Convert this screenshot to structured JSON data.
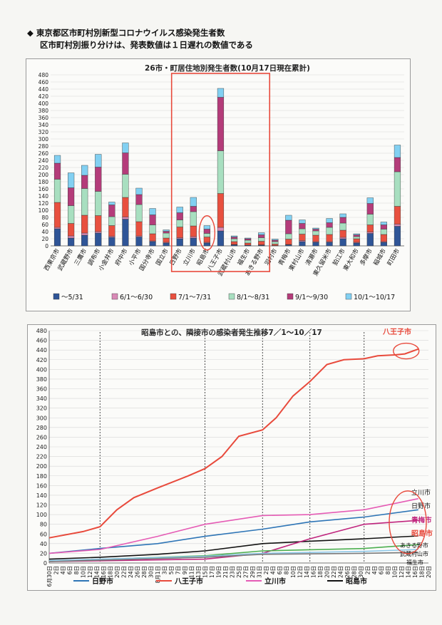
{
  "header": {
    "bullet": "◆",
    "line1": "東京都区市町村別新型コロナウイルス感染発生者数",
    "line2": "区市町村別振り分けは、発表数値は１日遅れの数値である"
  },
  "chart_data": [
    {
      "type": "bar",
      "stacked": true,
      "title": "26市・町居住地別発生者数(10月17日現在累計)",
      "ylim": [
        0,
        480
      ],
      "yticks": [
        0,
        20,
        40,
        60,
        80,
        100,
        120,
        140,
        160,
        180,
        200,
        220,
        240,
        260,
        280,
        300,
        320,
        340,
        360,
        380,
        400,
        420,
        440,
        460,
        480
      ],
      "categories": [
        "西東京市",
        "武蔵野市",
        "三鷹市",
        "調布市",
        "小金井市",
        "府中市",
        "小平市",
        "国分寺市",
        "国立市",
        "日野市",
        "立川市",
        "昭島市",
        "八王子市",
        "武蔵村山市",
        "福生市",
        "あきる野市",
        "羽村市",
        "青梅市",
        "東村山市",
        "清瀬市",
        "東久留米市",
        "狛江市",
        "東大和市",
        "多摩市",
        "稲城市",
        "町田市"
      ],
      "series": [
        {
          "name": "～5/31",
          "color": "#2f5597",
          "values": [
            48,
            22,
            30,
            36,
            24,
            75,
            25,
            12,
            8,
            20,
            22,
            8,
            42,
            3,
            2,
            2,
            1,
            3,
            12,
            10,
            10,
            20,
            8,
            35,
            10,
            55
          ]
        },
        {
          "name": "6/1～6/30",
          "color": "#d98ab7",
          "values": [
            4,
            6,
            6,
            4,
            3,
            6,
            3,
            2,
            2,
            3,
            4,
            2,
            10,
            1,
            0,
            1,
            0,
            1,
            3,
            2,
            2,
            4,
            2,
            4,
            2,
            6
          ]
        },
        {
          "name": "7/1～7/31",
          "color": "#e8503f",
          "values": [
            70,
            35,
            50,
            45,
            30,
            55,
            40,
            20,
            12,
            30,
            30,
            15,
            95,
            8,
            6,
            10,
            4,
            15,
            18,
            18,
            20,
            20,
            10,
            20,
            20,
            50
          ]
        },
        {
          "name": "8/1～8/31",
          "color": "#a8dfc0",
          "values": [
            65,
            50,
            75,
            68,
            25,
            65,
            48,
            25,
            14,
            20,
            40,
            10,
            120,
            8,
            8,
            10,
            7,
            15,
            15,
            12,
            20,
            20,
            6,
            30,
            15,
            97
          ]
        },
        {
          "name": "9/1～9/30",
          "color": "#b43c7a",
          "values": [
            45,
            50,
            37,
            68,
            33,
            60,
            28,
            28,
            5,
            20,
            15,
            12,
            150,
            5,
            4,
            8,
            4,
            38,
            15,
            5,
            13,
            16,
            5,
            30,
            12,
            40
          ]
        },
        {
          "name": "10/1～10/17",
          "color": "#82d0f2",
          "values": [
            22,
            42,
            28,
            36,
            8,
            28,
            18,
            18,
            4,
            16,
            25,
            10,
            25,
            3,
            2,
            6,
            3,
            14,
            10,
            3,
            12,
            10,
            3,
            16,
            8,
            35
          ]
        }
      ],
      "highlight_box": "日野市–あきる野市",
      "highlight_circle": "昭島市"
    },
    {
      "type": "line",
      "title": "昭島市との、隣接市の感染者発生推移7／1～10／17",
      "ylim": [
        0,
        480
      ],
      "yticks": [
        0,
        20,
        40,
        60,
        80,
        100,
        120,
        140,
        160,
        180,
        200,
        220,
        240,
        260,
        280,
        300,
        320,
        340,
        360,
        380,
        400,
        420,
        440,
        460,
        480
      ],
      "x_start": "6月30日",
      "x_end": "10月20日",
      "xtick_labels": [
        "6月30日",
        "2日",
        "4日",
        "6日",
        "8日",
        "10日",
        "12日",
        "14日",
        "16日",
        "18日",
        "20日",
        "22日",
        "24日",
        "26日",
        "28日",
        "30日",
        "8月1日",
        "3日",
        "5日",
        "7日",
        "9日",
        "11日",
        "13日",
        "15日",
        "17日",
        "19日",
        "21日",
        "23日",
        "25日",
        "27日",
        "29日",
        "31日",
        "2日",
        "4日",
        "6日",
        "8日",
        "10日",
        "12日",
        "14日",
        "16日",
        "18日",
        "20日",
        "22日",
        "24日",
        "26日",
        "28日",
        "30日",
        "2日",
        "4日",
        "6日",
        "8日",
        "10日",
        "12日",
        "14日",
        "16日",
        "18日",
        "20日"
      ],
      "vlines": [
        "7月15日",
        "8月15日",
        "9月1日",
        "9月15日",
        "10月1日"
      ],
      "series": [
        {
          "name": "日野市",
          "color": "#2e75b6",
          "x": [
            "6月30日",
            "7月15日",
            "8月1日",
            "8月15日",
            "9月1日",
            "9月15日",
            "10月1日",
            "10月17日"
          ],
          "y": [
            20,
            30,
            40,
            55,
            70,
            85,
            95,
            110
          ]
        },
        {
          "name": "八王子市",
          "color": "#e84a3c",
          "x": [
            "6月30日",
            "7月10日",
            "7月15日",
            "7月20日",
            "7月25日",
            "8月1日",
            "8月10日",
            "8月15日",
            "8月20日",
            "8月25日",
            "9月1日",
            "9月5日",
            "9月10日",
            "9月15日",
            "9月20日",
            "9月25日",
            "10月1日",
            "10月5日",
            "10月10日",
            "10月13日",
            "10月17日"
          ],
          "y": [
            52,
            65,
            75,
            110,
            135,
            155,
            180,
            195,
            220,
            262,
            275,
            300,
            345,
            375,
            410,
            420,
            422,
            428,
            430,
            432,
            442
          ]
        },
        {
          "name": "立川市",
          "color": "#e55cb5",
          "x": [
            "6月30日",
            "7月15日",
            "8月1日",
            "8月15日",
            "9月1日",
            "9月15日",
            "10月1日",
            "10月17日"
          ],
          "y": [
            20,
            28,
            55,
            80,
            98,
            100,
            110,
            133
          ]
        },
        {
          "name": "昭島市",
          "color": "#111111",
          "x": [
            "6月30日",
            "7月15日",
            "8月1日",
            "8月15日",
            "9月1日",
            "9月15日",
            "10月1日",
            "10月17日"
          ],
          "y": [
            8,
            12,
            18,
            25,
            40,
            45,
            50,
            56
          ]
        },
        {
          "name": "青梅市",
          "color": "#c0257e",
          "x": [
            "6月30日",
            "8月15日",
            "9月1日",
            "9月15日",
            "10月1日",
            "10月17日"
          ],
          "y": [
            3,
            8,
            20,
            50,
            80,
            88
          ]
        },
        {
          "name": "あきる野市",
          "color": "#4caf50",
          "x": [
            "6月30日",
            "8月15日",
            "9月1日",
            "10月1日",
            "10月17日"
          ],
          "y": [
            4,
            15,
            25,
            30,
            38
          ]
        },
        {
          "name": "武蔵村山市",
          "color": "#8ec8e8",
          "x": [
            "6月30日",
            "8月15日",
            "9月1日",
            "10月1日",
            "10月17日"
          ],
          "y": [
            5,
            14,
            20,
            24,
            28
          ]
        },
        {
          "name": "福生市",
          "color": "#7a7a7a",
          "x": [
            "6月30日",
            "8月15日",
            "9月1日",
            "10月1日",
            "10月17日"
          ],
          "y": [
            3,
            12,
            18,
            20,
            22
          ]
        }
      ],
      "legend": [
        "日野市",
        "八王子市",
        "立川市",
        "昭島市"
      ],
      "end_labels": [
        "八王子市",
        "立川市",
        "日野市",
        "青梅市",
        "昭島市",
        "あきる野市",
        "武蔵村山市",
        "福生市"
      ]
    }
  ]
}
